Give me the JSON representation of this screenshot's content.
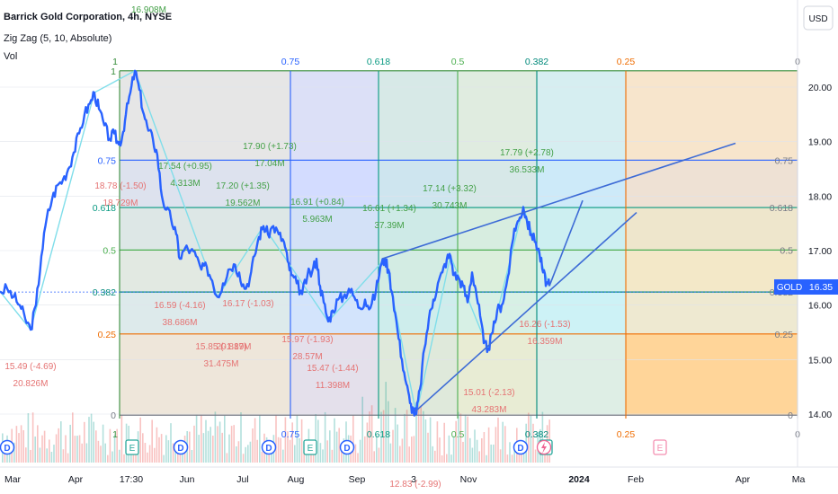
{
  "header": {
    "title": "Barrick Gold Corporation, 4h, NYSE",
    "indicator": "Zig Zag (5, 10, Absolute)",
    "volume": "Vol",
    "currency_button": "USD",
    "top_value_label": "16.908M"
  },
  "price_tag": {
    "symbol": "GOLD",
    "value": "16.35"
  },
  "events": [
    {
      "type": "D",
      "x": 8
    },
    {
      "type": "E",
      "x": 147
    },
    {
      "type": "D",
      "x": 201
    },
    {
      "type": "D",
      "x": 299
    },
    {
      "type": "E",
      "x": 345
    },
    {
      "type": "D",
      "x": 386
    },
    {
      "type": "D",
      "x": 579
    },
    {
      "type": "E",
      "x": 607
    },
    {
      "type": "E",
      "x": 734
    }
  ],
  "chart_data": {
    "type": "line",
    "x_ticks": [
      "Mar",
      "Apr",
      "17:30",
      "Jun",
      "Jul",
      "Aug",
      "Sep",
      "3",
      "Nov",
      "2024",
      "Feb",
      "Apr",
      "Ma"
    ],
    "y_ticks": [
      "20.00",
      "19.00",
      "18.00",
      "17.00",
      "16.00",
      "15.00",
      "14.00"
    ],
    "ylim": [
      13.9,
      20.4
    ],
    "fib": {
      "top_levels": [
        {
          "label": "1",
          "color": "#388e3c"
        },
        {
          "label": "0.75",
          "color": "#2962ff"
        },
        {
          "label": "0.618",
          "color": "#089981"
        },
        {
          "label": "0.5",
          "color": "#4caf50"
        },
        {
          "label": "0.382",
          "color": "#00897b"
        },
        {
          "label": "0.25",
          "color": "#ef6c00"
        },
        {
          "label": "0",
          "color": "#787b86"
        }
      ],
      "left_levels": [
        {
          "label": "1",
          "price": 20.3,
          "color": "#388e3c"
        },
        {
          "label": "0.75",
          "price": 18.66,
          "color": "#2962ff"
        },
        {
          "label": "0.618",
          "price": 17.79,
          "color": "#089981"
        },
        {
          "label": "0.5",
          "price": 17.01,
          "color": "#4caf50"
        },
        {
          "label": "0.382",
          "price": 16.24,
          "color": "#00897b"
        },
        {
          "label": "0.25",
          "price": 15.47,
          "color": "#ef6c00"
        },
        {
          "label": "0",
          "price": 13.98,
          "color": "#787b86"
        }
      ],
      "right_levels": [
        {
          "label": "0.75",
          "price": 18.66
        },
        {
          "label": "0.618",
          "price": 17.79
        },
        {
          "label": "0.5",
          "price": 17.01
        },
        {
          "label": "0.382",
          "price": 16.24
        },
        {
          "label": "0.25",
          "price": 15.47
        },
        {
          "label": "0",
          "price": 13.98
        }
      ]
    },
    "price_series": [
      [
        0,
        16.25
      ],
      [
        8,
        16.3
      ],
      [
        15,
        16.15
      ],
      [
        22,
        16.0
      ],
      [
        28,
        15.75
      ],
      [
        34,
        15.55
      ],
      [
        40,
        16.0
      ],
      [
        46,
        16.9
      ],
      [
        52,
        17.6
      ],
      [
        58,
        17.95
      ],
      [
        64,
        18.2
      ],
      [
        70,
        18.3
      ],
      [
        76,
        18.5
      ],
      [
        82,
        18.8
      ],
      [
        88,
        19.15
      ],
      [
        94,
        19.5
      ],
      [
        100,
        19.7
      ],
      [
        105,
        19.9
      ],
      [
        110,
        19.6
      ],
      [
        116,
        19.3
      ],
      [
        122,
        19.05
      ],
      [
        127,
        19.15
      ],
      [
        132,
        18.95
      ],
      [
        136,
        19.1
      ],
      [
        140,
        19.5
      ],
      [
        145,
        19.9
      ],
      [
        150,
        20.3
      ],
      [
        155,
        19.95
      ],
      [
        160,
        19.5
      ],
      [
        165,
        19.2
      ],
      [
        170,
        19.05
      ],
      [
        175,
        18.75
      ],
      [
        180,
        18.0
      ],
      [
        185,
        17.75
      ],
      [
        190,
        17.6
      ],
      [
        196,
        17.3
      ],
      [
        200,
        16.85
      ],
      [
        206,
        17.05
      ],
      [
        212,
        17.0
      ],
      [
        218,
        16.9
      ],
      [
        224,
        16.65
      ],
      [
        230,
        16.7
      ],
      [
        236,
        16.45
      ],
      [
        242,
        16.15
      ],
      [
        248,
        16.4
      ],
      [
        254,
        16.65
      ],
      [
        260,
        16.75
      ],
      [
        266,
        16.6
      ],
      [
        272,
        16.3
      ],
      [
        278,
        16.5
      ],
      [
        283,
        16.9
      ],
      [
        288,
        17.25
      ],
      [
        293,
        17.45
      ],
      [
        298,
        17.3
      ],
      [
        304,
        17.45
      ],
      [
        310,
        17.3
      ],
      [
        316,
        17.15
      ],
      [
        320,
        16.8
      ],
      [
        324,
        16.55
      ],
      [
        330,
        16.4
      ],
      [
        336,
        16.2
      ],
      [
        342,
        16.55
      ],
      [
        347,
        16.6
      ],
      [
        352,
        16.85
      ],
      [
        356,
        16.35
      ],
      [
        360,
        16.05
      ],
      [
        365,
        15.7
      ],
      [
        370,
        15.9
      ],
      [
        376,
        16.1
      ],
      [
        382,
        16.15
      ],
      [
        388,
        16.3
      ],
      [
        394,
        16.15
      ],
      [
        400,
        15.95
      ],
      [
        406,
        16.1
      ],
      [
        412,
        15.95
      ],
      [
        418,
        16.25
      ],
      [
        423,
        16.7
      ],
      [
        428,
        16.85
      ],
      [
        432,
        16.65
      ],
      [
        437,
        16.15
      ],
      [
        442,
        15.55
      ],
      [
        447,
        15.0
      ],
      [
        452,
        14.55
      ],
      [
        456,
        14.2
      ],
      [
        460,
        14.05
      ],
      [
        463,
        14.0
      ],
      [
        467,
        14.45
      ],
      [
        472,
        15.2
      ],
      [
        477,
        15.75
      ],
      [
        482,
        16.1
      ],
      [
        487,
        16.4
      ],
      [
        492,
        16.6
      ],
      [
        497,
        16.85
      ],
      [
        501,
        16.9
      ],
      [
        505,
        16.55
      ],
      [
        510,
        16.5
      ],
      [
        515,
        16.35
      ],
      [
        520,
        16.05
      ],
      [
        525,
        16.6
      ],
      [
        529,
        16.3
      ],
      [
        534,
        15.8
      ],
      [
        538,
        15.3
      ],
      [
        543,
        15.2
      ],
      [
        548,
        15.5
      ],
      [
        553,
        15.9
      ],
      [
        558,
        16.0
      ],
      [
        563,
        16.35
      ],
      [
        567,
        16.75
      ],
      [
        572,
        17.4
      ],
      [
        577,
        17.55
      ],
      [
        582,
        17.8
      ],
      [
        586,
        17.55
      ],
      [
        591,
        17.3
      ],
      [
        596,
        17.15
      ],
      [
        600,
        16.95
      ],
      [
        604,
        16.6
      ],
      [
        608,
        16.4
      ],
      [
        611,
        16.35
      ]
    ],
    "zigzag": [
      [
        0,
        16.25
      ],
      [
        34,
        15.55
      ],
      [
        105,
        19.9
      ],
      [
        150,
        20.3
      ],
      [
        242,
        16.15
      ],
      [
        293,
        17.45
      ],
      [
        365,
        15.7
      ],
      [
        428,
        16.85
      ],
      [
        463,
        14.0
      ],
      [
        501,
        16.9
      ],
      [
        543,
        15.2
      ],
      [
        582,
        17.8
      ],
      [
        611,
        16.35
      ]
    ],
    "trendlines": [
      {
        "from": [
          425,
          16.85
        ],
        "to": [
          818,
          18.97
        ]
      },
      {
        "from": [
          462,
          14.05
        ],
        "to": [
          708,
          17.7
        ]
      },
      {
        "from": [
          611,
          16.35
        ],
        "to": [
          648,
          17.92
        ]
      }
    ],
    "annotations": [
      {
        "text": "17.90 (+1.73)",
        "x": 300,
        "y": 166,
        "color": "#43a047"
      },
      {
        "text": "17.04M",
        "x": 300,
        "y": 185,
        "color": "#43a047"
      },
      {
        "text": "17.54 (+0.95)",
        "x": 206,
        "y": 188,
        "color": "#43a047"
      },
      {
        "text": "4.313M",
        "x": 206,
        "y": 207,
        "color": "#43a047"
      },
      {
        "text": "17.20 (+1.35)",
        "x": 270,
        "y": 210,
        "color": "#43a047"
      },
      {
        "text": "19.562M",
        "x": 270,
        "y": 229,
        "color": "#43a047"
      },
      {
        "text": "16.91 (+0.84)",
        "x": 353,
        "y": 228,
        "color": "#43a047"
      },
      {
        "text": "5.963M",
        "x": 353,
        "y": 247,
        "color": "#43a047"
      },
      {
        "text": "16.61 (+1.34)",
        "x": 433,
        "y": 235,
        "color": "#43a047"
      },
      {
        "text": "37.39M",
        "x": 433,
        "y": 254,
        "color": "#43a047"
      },
      {
        "text": "17.14 (+3.32)",
        "x": 500,
        "y": 213,
        "color": "#43a047"
      },
      {
        "text": "30.743M",
        "x": 500,
        "y": 232,
        "color": "#43a047"
      },
      {
        "text": "17.79 (+2.78)",
        "x": 586,
        "y": 173,
        "color": "#43a047"
      },
      {
        "text": "36.533M",
        "x": 586,
        "y": 192,
        "color": "#43a047"
      },
      {
        "text": "18.78 (-1.50)",
        "x": 134,
        "y": 210,
        "color": "#e57373"
      },
      {
        "text": "18.729M",
        "x": 134,
        "y": 229,
        "color": "#e57373"
      },
      {
        "text": "16.59 (-4.16)",
        "x": 200,
        "y": 343,
        "color": "#e57373"
      },
      {
        "text": "38.686M",
        "x": 200,
        "y": 362,
        "color": "#e57373"
      },
      {
        "text": "16.17 (-1.03)",
        "x": 276,
        "y": 341,
        "color": "#e57373"
      },
      {
        "text": "15.85 (-1.89)",
        "x": 246,
        "y": 389,
        "color": "#e57373"
      },
      {
        "text": "31.475M",
        "x": 246,
        "y": 408,
        "color": "#e57373"
      },
      {
        "text": "20.817M",
        "x": 260,
        "y": 389,
        "color": "#e57373"
      },
      {
        "text": "15.97 (-1.93)",
        "x": 342,
        "y": 381,
        "color": "#e57373"
      },
      {
        "text": "28.57M",
        "x": 342,
        "y": 400,
        "color": "#e57373"
      },
      {
        "text": "15.47 (-1.44)",
        "x": 370,
        "y": 413,
        "color": "#e57373"
      },
      {
        "text": "11.398M",
        "x": 370,
        "y": 432,
        "color": "#e57373"
      },
      {
        "text": "15.01 (-2.13)",
        "x": 544,
        "y": 440,
        "color": "#e57373"
      },
      {
        "text": "43.283M",
        "x": 544,
        "y": 459,
        "color": "#e57373"
      },
      {
        "text": "16.26 (-1.53)",
        "x": 606,
        "y": 364,
        "color": "#e57373"
      },
      {
        "text": "16.359M",
        "x": 606,
        "y": 383,
        "color": "#e57373"
      },
      {
        "text": "15.49 (-4.69)",
        "x": 34,
        "y": 411,
        "color": "#e57373"
      },
      {
        "text": "20.826M",
        "x": 34,
        "y": 430,
        "color": "#e57373"
      },
      {
        "text": "12.83 (-2.99)",
        "x": 462,
        "y": 542,
        "color": "#e57373"
      }
    ]
  }
}
